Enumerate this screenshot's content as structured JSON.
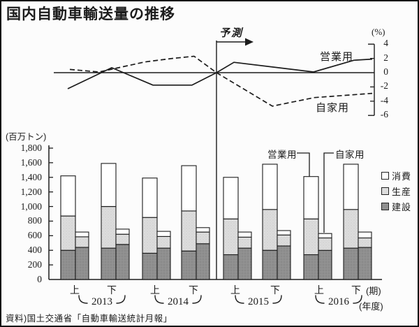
{
  "title": "国内自動車輸送量の推移",
  "source": "資料)国土交通省「自動車輸送統計月報」",
  "colors": {
    "ink": "#1c1c1c",
    "white": "#ffffff",
    "light_gray": "#dcdcdc",
    "dark_gray": "#8f8f8f"
  },
  "chart_data": [
    {
      "type": "line",
      "ylabel": "(%)",
      "ylim": [
        -6,
        4
      ],
      "yticks": [
        4,
        2,
        0,
        -2,
        -4,
        -6
      ],
      "forecast_label": "予測",
      "x_unit": "px",
      "y_unit": "percent",
      "series": [
        {
          "name": "営業用",
          "line_style": "solid",
          "points": [
            [
              95,
              -2.25
            ],
            [
              158,
              0.7
            ],
            [
              217,
              -1.75
            ],
            [
              273,
              -1.75
            ],
            [
              308,
              0
            ],
            [
              333,
              1.45
            ],
            [
              447,
              0.1
            ],
            [
              505,
              1.75
            ],
            [
              531,
              1.9
            ]
          ]
        },
        {
          "name": "自家用",
          "line_style": "dashed",
          "points": [
            [
              98,
              0.45
            ],
            [
              140,
              0.1
            ],
            [
              205,
              1.5
            ],
            [
              245,
              2.0
            ],
            [
              276,
              2.3
            ],
            [
              308,
              0
            ],
            [
              388,
              -4.7
            ],
            [
              448,
              -3.5
            ],
            [
              531,
              -2.9
            ]
          ]
        }
      ]
    },
    {
      "type": "bar",
      "stacked": true,
      "ylabel": "(百万トン)",
      "ylim": [
        0,
        1800
      ],
      "ytick_labels": [
        "1,800",
        "1,600",
        "1,400",
        "1,200",
        "1,000",
        "800",
        "600",
        "400",
        "200",
        "0"
      ],
      "categories": [
        "2013上",
        "2013下",
        "2014上",
        "2014下",
        "2015上",
        "2015下",
        "2016上",
        "2016下"
      ],
      "half_labels": [
        "上",
        "下",
        "上",
        "下",
        "上",
        "下",
        "上",
        "下"
      ],
      "years": [
        "2013",
        "2014",
        "2015",
        "2016"
      ],
      "period_suffix": "(期)",
      "year_suffix": "(年度)",
      "bar_group_labels": {
        "tall": "営業用",
        "short": "自家用"
      },
      "segment_order_bottom_to_top": [
        "建設",
        "生産",
        "消費"
      ],
      "legend": [
        {
          "label": "消費",
          "fill": "white"
        },
        {
          "label": "生産",
          "fill": "light_gray"
        },
        {
          "label": "建設",
          "fill": "dark_gray"
        }
      ],
      "groups": [
        {
          "name": "営業用",
          "建設": [
            400,
            430,
            360,
            390,
            340,
            400,
            340,
            430
          ],
          "生産": [
            470,
            570,
            490,
            550,
            490,
            560,
            490,
            530
          ],
          "消費": [
            550,
            590,
            540,
            620,
            570,
            620,
            580,
            620
          ]
        },
        {
          "name": "自家用",
          "建設": [
            440,
            480,
            430,
            490,
            430,
            460,
            400,
            440
          ],
          "生産": [
            145,
            140,
            160,
            160,
            150,
            150,
            170,
            130
          ],
          "消費": [
            65,
            70,
            70,
            60,
            70,
            60,
            60,
            80
          ]
        }
      ]
    }
  ]
}
